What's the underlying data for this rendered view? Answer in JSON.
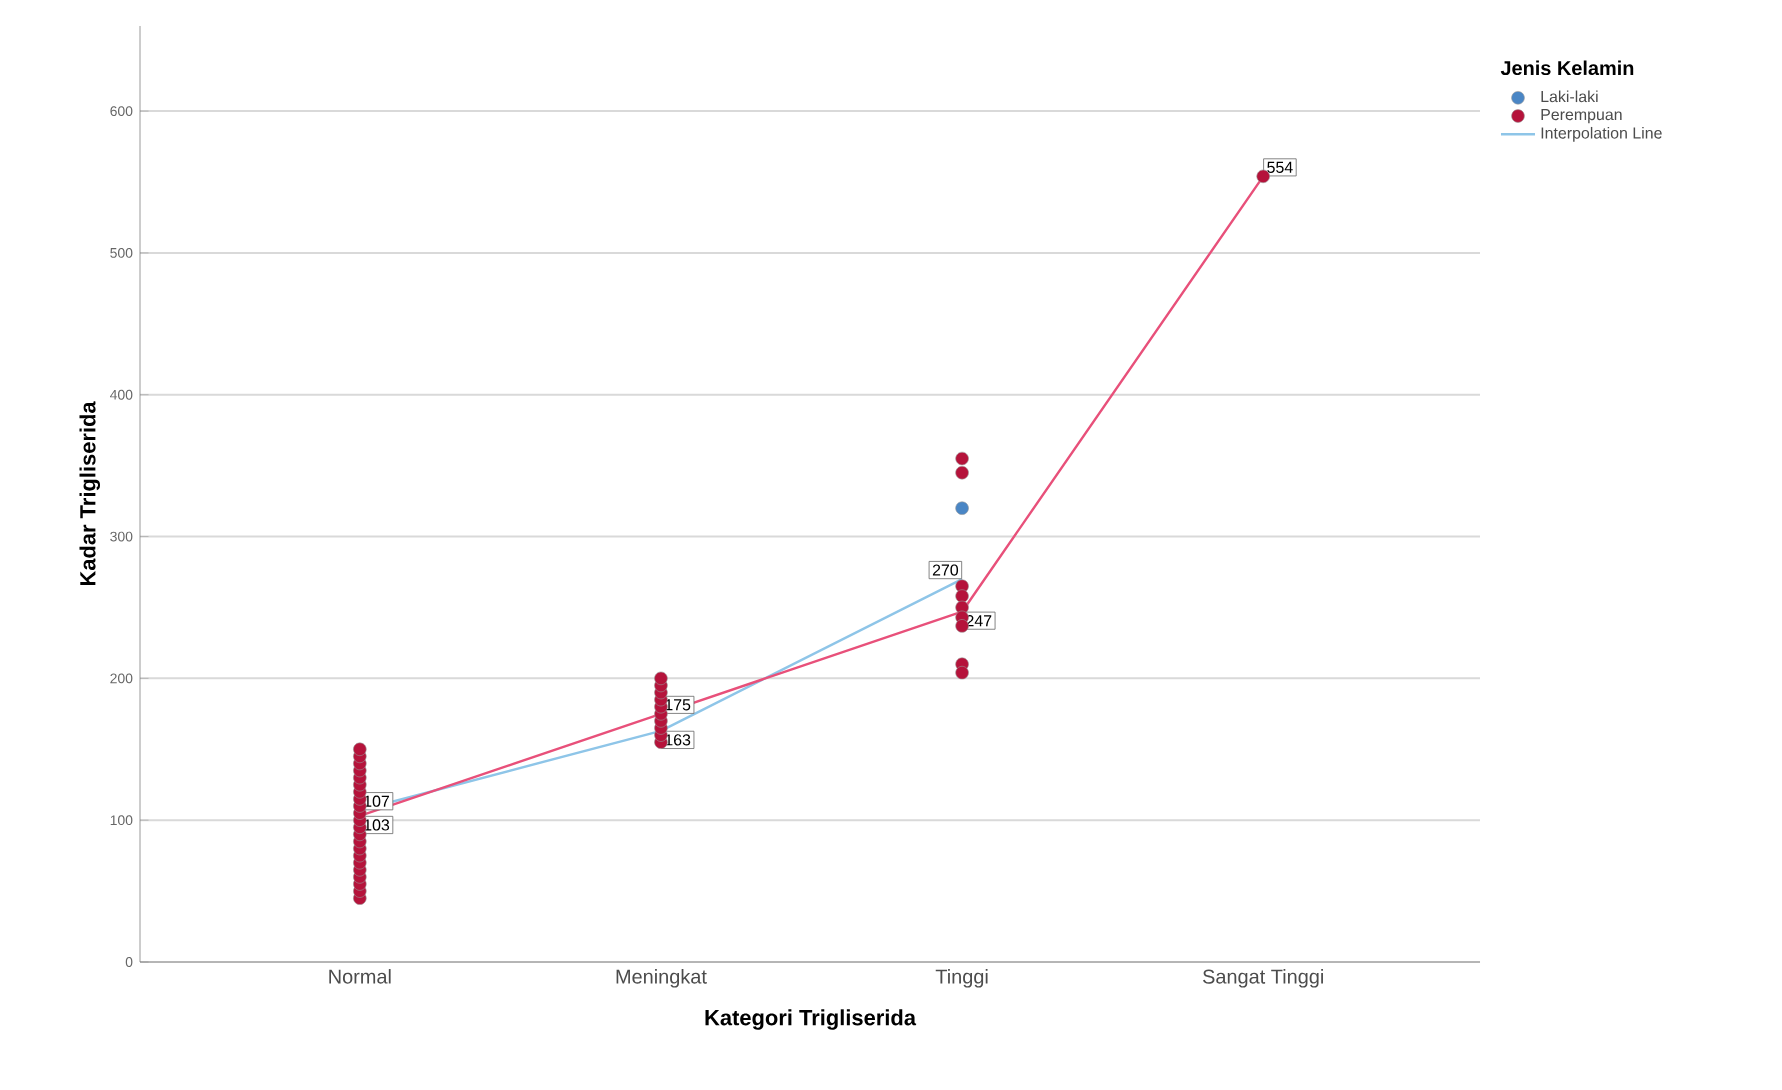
{
  "chart_data": {
    "type": "scatter",
    "xlabel": "Kategori Trigliserida",
    "ylabel": "Kadar Trigliserida",
    "legend_title": "Jenis Kelamin",
    "categories": [
      "Normal",
      "Meningkat",
      "Tinggi",
      "Sangat Tinggi"
    ],
    "ylim": [
      0,
      660
    ],
    "yticks": [
      0,
      100,
      200,
      300,
      400,
      500,
      600
    ],
    "grid": "y",
    "legend": "top right",
    "series": [
      {
        "name": "Laki-laki",
        "marker": "circle",
        "color": "#4a86c5",
        "x": [
          "Tinggi",
          "Tinggi"
        ],
        "values": [
          320,
          null
        ]
      },
      {
        "name": "Perempuan",
        "marker": "circle",
        "color": "#b5133b",
        "x": [
          "Normal",
          "Normal",
          "Normal",
          "Normal",
          "Normal",
          "Normal",
          "Normal",
          "Normal",
          "Normal",
          "Normal",
          "Normal",
          "Normal",
          "Normal",
          "Normal",
          "Normal",
          "Normal",
          "Normal",
          "Normal",
          "Normal",
          "Normal",
          "Normal",
          "Normal",
          "Meningkat",
          "Meningkat",
          "Meningkat",
          "Meningkat",
          "Meningkat",
          "Meningkat",
          "Meningkat",
          "Meningkat",
          "Meningkat",
          "Meningkat",
          "Tinggi",
          "Tinggi",
          "Tinggi",
          "Tinggi",
          "Tinggi",
          "Tinggi",
          "Tinggi",
          "Tinggi",
          "Tinggi",
          "Sangat Tinggi"
        ],
        "values": [
          45,
          50,
          55,
          60,
          65,
          70,
          75,
          80,
          85,
          90,
          95,
          100,
          105,
          110,
          115,
          120,
          125,
          130,
          135,
          140,
          145,
          150,
          155,
          160,
          165,
          170,
          175,
          180,
          185,
          190,
          195,
          200,
          355,
          345,
          265,
          258,
          250,
          243,
          237,
          210,
          204,
          554
        ]
      },
      {
        "name": "Interpolation Line",
        "type": "line",
        "marker": "none",
        "color": "#8ec5e8",
        "values": [
          107,
          163,
          270,
          null
        ],
        "value_labels": [
          "107",
          "163",
          "270",
          null
        ]
      },
      {
        "type": "line",
        "marker": "none",
        "color": "#e8507a",
        "values": [
          103,
          175,
          247,
          554
        ],
        "value_labels": [
          "103",
          "175",
          "247",
          "554"
        ]
      }
    ]
  }
}
